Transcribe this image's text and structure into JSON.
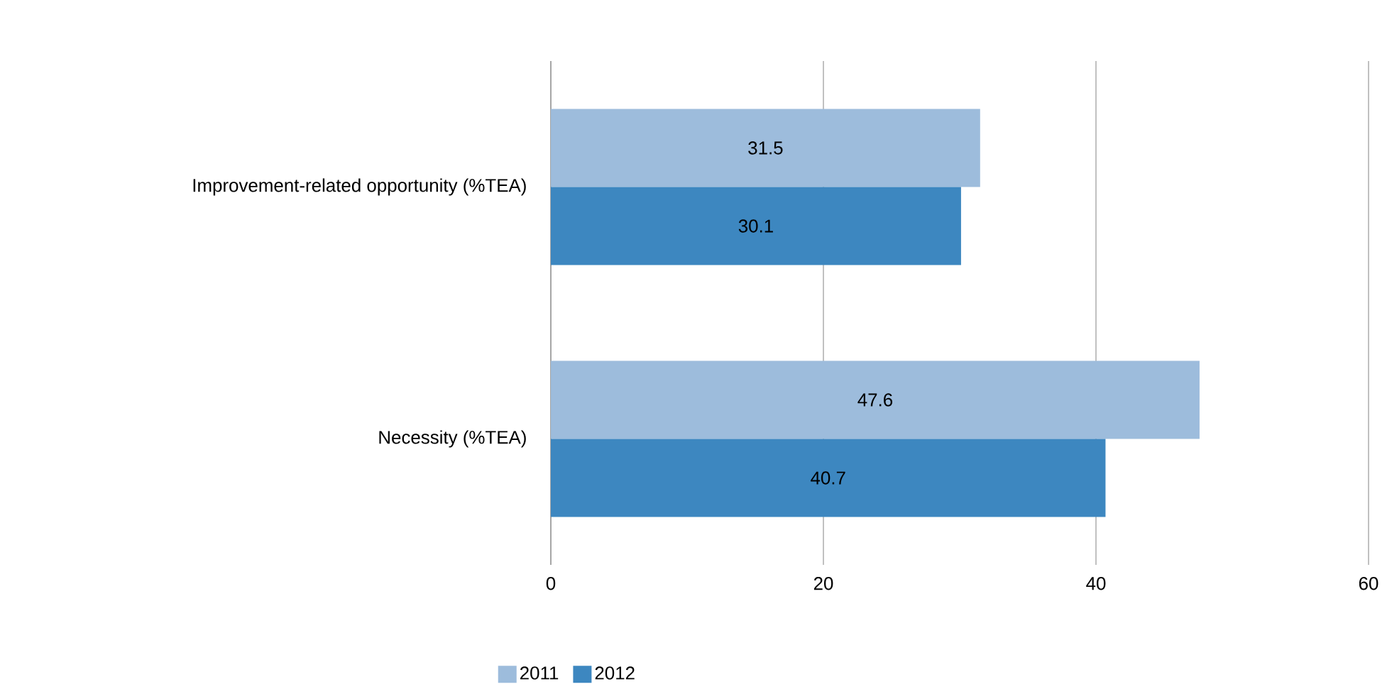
{
  "chart_data": {
    "type": "bar",
    "orientation": "horizontal",
    "categories": [
      "Improvement-related opportunity (%TEA)",
      "Necessity (%TEA)"
    ],
    "series": [
      {
        "name": "2011",
        "color": "#9dbcdc",
        "values": [
          31.5,
          47.6
        ]
      },
      {
        "name": "2012",
        "color": "#3d87c0",
        "values": [
          30.1,
          40.7
        ]
      }
    ],
    "xlim": [
      0,
      60
    ],
    "xticks": [
      0,
      20,
      40,
      60
    ],
    "grid": "x",
    "legend": "bottom left",
    "data_labels": true
  }
}
